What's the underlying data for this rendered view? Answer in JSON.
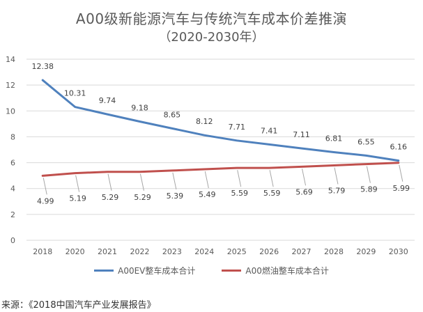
{
  "title": "A00级新能源汽车与传统汽车成本价差推演",
  "subtitle": "（2020-2030年）",
  "source": "来源：《2018中国汽车产业发展报告》",
  "colors": {
    "ev": "#4F81BD",
    "oil": "#C0504D",
    "grid": "#d9d9d9",
    "text": "#595959"
  },
  "chart_data": {
    "type": "line",
    "title": "A00级新能源汽车与传统汽车成本价差推演",
    "subtitle": "（2020-2030年）",
    "categories": [
      "2018",
      "2020",
      "2021",
      "2022",
      "2023",
      "2024",
      "2025",
      "2026",
      "2027",
      "2028",
      "2029",
      "2030"
    ],
    "series": [
      {
        "name": "A00EV整车成本合计",
        "values": [
          12.38,
          10.31,
          9.74,
          9.18,
          8.65,
          8.12,
          7.71,
          7.41,
          7.11,
          6.81,
          6.55,
          6.16
        ]
      },
      {
        "name": "A00燃油整车成本合计",
        "values": [
          4.99,
          5.19,
          5.29,
          5.29,
          5.39,
          5.49,
          5.59,
          5.59,
          5.69,
          5.79,
          5.89,
          5.99
        ]
      }
    ],
    "ylim": [
      0,
      14
    ],
    "yticks": [
      0,
      2,
      4,
      6,
      8,
      10,
      12,
      14
    ],
    "xlabel": "",
    "ylabel": "",
    "grid": true,
    "legend": "bottom"
  }
}
